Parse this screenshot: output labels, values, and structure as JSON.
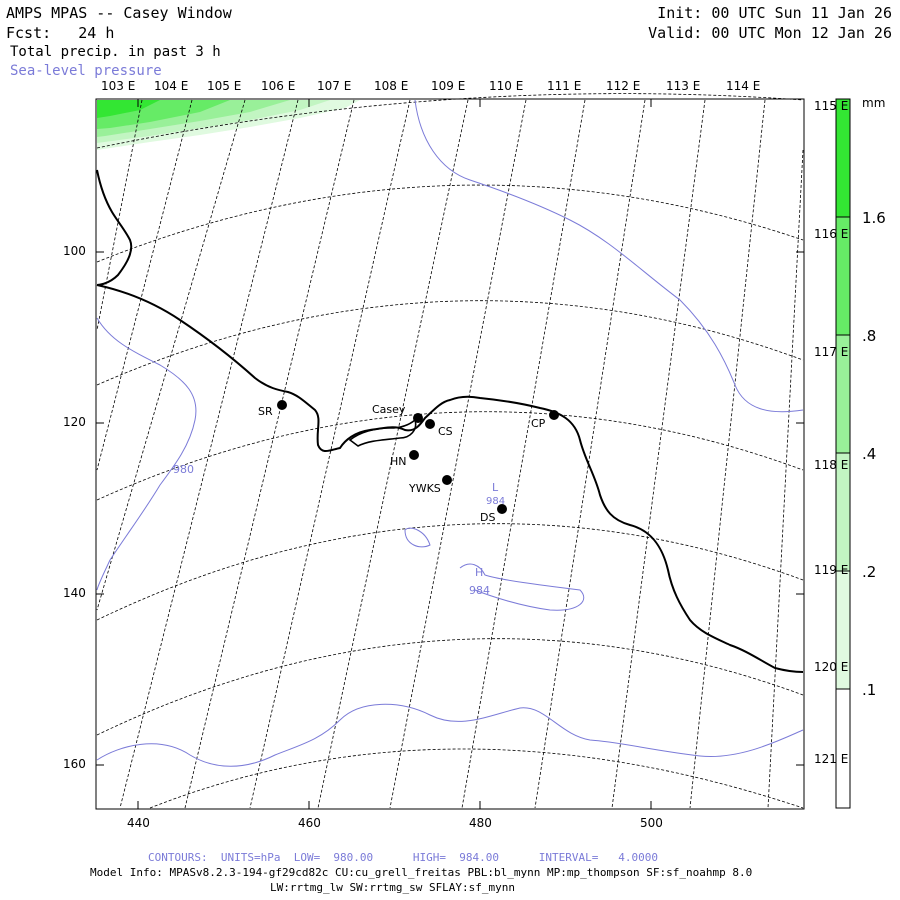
{
  "header": {
    "title": "AMPS MPAS -- Casey Window",
    "fcst": "Fcst:   24 h",
    "field": "Total precip. in past 3 h",
    "overlay": "Sea-level pressure",
    "init": "Init: 00 UTC Sun 11 Jan 26",
    "valid": "Valid: 00 UTC Mon 12 Jan 26"
  },
  "lon_top": [
    "103 E",
    "104 E",
    "105 E",
    "106 E",
    "107 E",
    "108 E",
    "109 E",
    "110 E",
    "111 E",
    "112 E",
    "113 E",
    "114 E"
  ],
  "lon_right": [
    "115 E",
    "116 E",
    "117 E",
    "118 E",
    "119 E",
    "120 E",
    "121 E"
  ],
  "y_ticks": [
    "100",
    "120",
    "140",
    "160"
  ],
  "x_ticks": [
    "440",
    "460",
    "480",
    "500"
  ],
  "stations": [
    {
      "label": "SR"
    },
    {
      "label": "Casey"
    },
    {
      "label": "CS"
    },
    {
      "label": "CP"
    },
    {
      "label": "HN"
    },
    {
      "label": "YWKS"
    },
    {
      "label": "DS"
    }
  ],
  "contour_labels": [
    "980",
    "984",
    "984"
  ],
  "pressure_marks": [
    "L",
    "H"
  ],
  "colorbar": {
    "unit": "mm",
    "labels": [
      "1.6",
      ".8",
      ".4",
      ".2",
      ".1"
    ],
    "colors": [
      "#33e633",
      "#66eb66",
      "#99f099",
      "#c2f5c2",
      "#e0fae0",
      "#ffffff"
    ]
  },
  "footer": {
    "contours": "CONTOURS:  UNITS=hPa  LOW=  980.00      HIGH=  984.00      INTERVAL=   4.0000",
    "model_info": "Model Info: MPASv8.2.3-194-gf29cd82c CU:cu_grell_freitas PBL:bl_mynn MP:mp_thompson SF:sf_noahmp 8.0",
    "model_info2": "LW:rrtmg_lw SW:rrtmg_sw SFLAY:sf_mynn"
  },
  "colors": {
    "contour": "#7b7bd8",
    "precip_dark": "#33e633",
    "precip_light": "#99f099"
  }
}
